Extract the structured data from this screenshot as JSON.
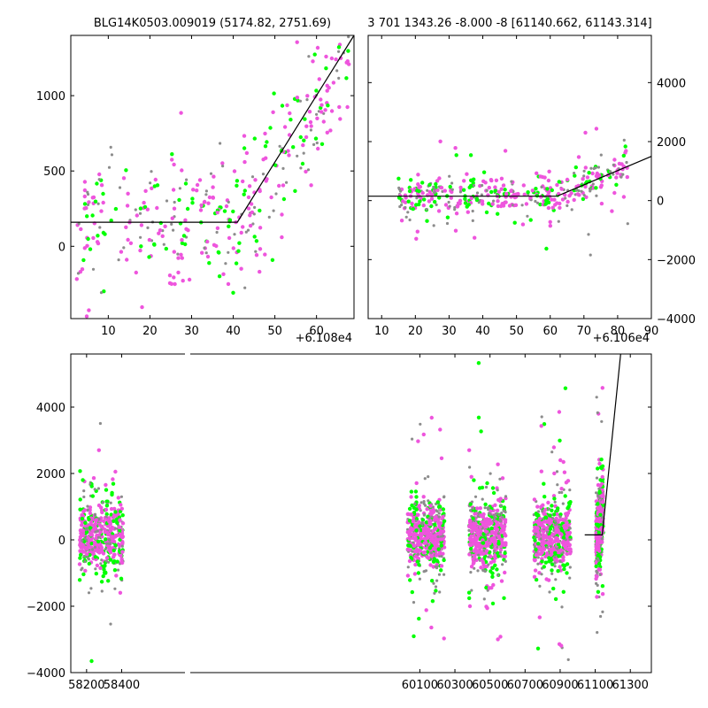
{
  "colors": {
    "gray": "#8c8c8c",
    "green": "#00ff00",
    "magenta": "#ee55dd",
    "line": "#000000"
  },
  "chart_data": [
    {
      "type": "scatter",
      "title": "BLG14K0503.009019 (5174.82, 2751.69)",
      "offset_label": "+6.108e4",
      "xlim": [
        1,
        69
      ],
      "ylim": [
        -480,
        1400
      ],
      "x_ticks": [
        10,
        20,
        30,
        40,
        50,
        60
      ],
      "y_ticks": [
        0,
        500,
        1000
      ],
      "fit_line": [
        [
          1,
          160
        ],
        [
          41,
          160
        ],
        [
          69,
          1400
        ]
      ],
      "point_model": {
        "x_range": [
          2,
          68
        ],
        "break_x": 41,
        "base_y": 160,
        "slope": 40,
        "spread": 260,
        "count": 380,
        "seed": 11
      }
    },
    {
      "type": "scatter",
      "title": "3 701 1343.26 -8.000 -8 [61140.662, 61143.314]",
      "offset_label": "+6.106e4",
      "xlim": [
        6,
        90
      ],
      "ylim": [
        -4000,
        5600
      ],
      "x_ticks": [
        10,
        20,
        30,
        40,
        50,
        60,
        70,
        80,
        90
      ],
      "y_ticks": [
        -4000,
        -2000,
        0,
        2000,
        4000
      ],
      "fit_line": [
        [
          6,
          150
        ],
        [
          62,
          150
        ],
        [
          90,
          1500
        ]
      ],
      "point_model": {
        "x_range": [
          15,
          83
        ],
        "break_x": 62,
        "base_y": 150,
        "slope": 48,
        "spread": 380,
        "count": 420,
        "seed": 23
      }
    },
    {
      "type": "scatter",
      "title": "",
      "xlim": [
        58110,
        61420
      ],
      "ylim": [
        -4000,
        5600
      ],
      "x_ticks": [
        58200,
        58400,
        60100,
        60300,
        60500,
        60700,
        60900,
        61100,
        61300
      ],
      "y_ticks": [
        -4000,
        -2000,
        0,
        2000,
        4000
      ],
      "fit_line": [
        [
          61040,
          150
        ],
        [
          61140,
          150
        ],
        [
          61245,
          5600
        ]
      ],
      "point_model": {
        "seasons": [
          [
            58160,
            58410
          ],
          [
            60030,
            60240
          ],
          [
            60380,
            60590
          ],
          [
            60750,
            60960
          ],
          [
            61105,
            61145
          ]
        ],
        "base_y": 100,
        "spread": 600,
        "count_per_season": 520,
        "seed": 37
      }
    }
  ]
}
